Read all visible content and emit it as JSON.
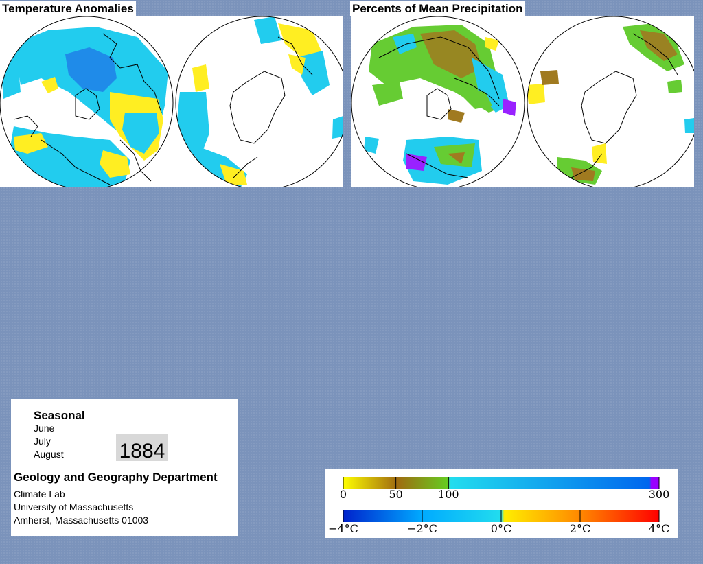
{
  "panels": {
    "temperature": {
      "title": "Temperature Anomalies"
    },
    "precipitation": {
      "title": "Percents of Mean Precipitation"
    }
  },
  "info": {
    "period": "Seasonal",
    "months": [
      "June",
      "July",
      "August"
    ],
    "year": "1884",
    "department": "Geology and Geography Department",
    "address": [
      "Climate Lab",
      "University of Massachusetts",
      "Amherst, Massachusetts 01003"
    ]
  },
  "legend": {
    "precipitation": {
      "labels": [
        "0",
        "50",
        "100",
        "300"
      ],
      "ticks": [
        0,
        50,
        100,
        300
      ],
      "stops": [
        "#ffff00",
        "#a06b10",
        "#66cc22",
        "#22ddee",
        "#0066ee",
        "#9900ff"
      ]
    },
    "temperature": {
      "labels": [
        "−4°C",
        "−2°C",
        "0°C",
        "2°C",
        "4°C"
      ],
      "ticks": [
        -4,
        -2,
        0,
        2,
        4
      ],
      "stops": [
        "#0022cc",
        "#00aaff",
        "#22ddee",
        "#ffee00",
        "#ff8800",
        "#ff0000"
      ]
    }
  },
  "colors": {
    "background": "#7b93bb",
    "cold_anomaly": "#22ccee",
    "strong_cold": "#1f7fe8",
    "warm_anomaly": "#ffee22",
    "dry": "#a07a20",
    "normal_wet": "#66cc33",
    "very_wet": "#9922ff"
  }
}
